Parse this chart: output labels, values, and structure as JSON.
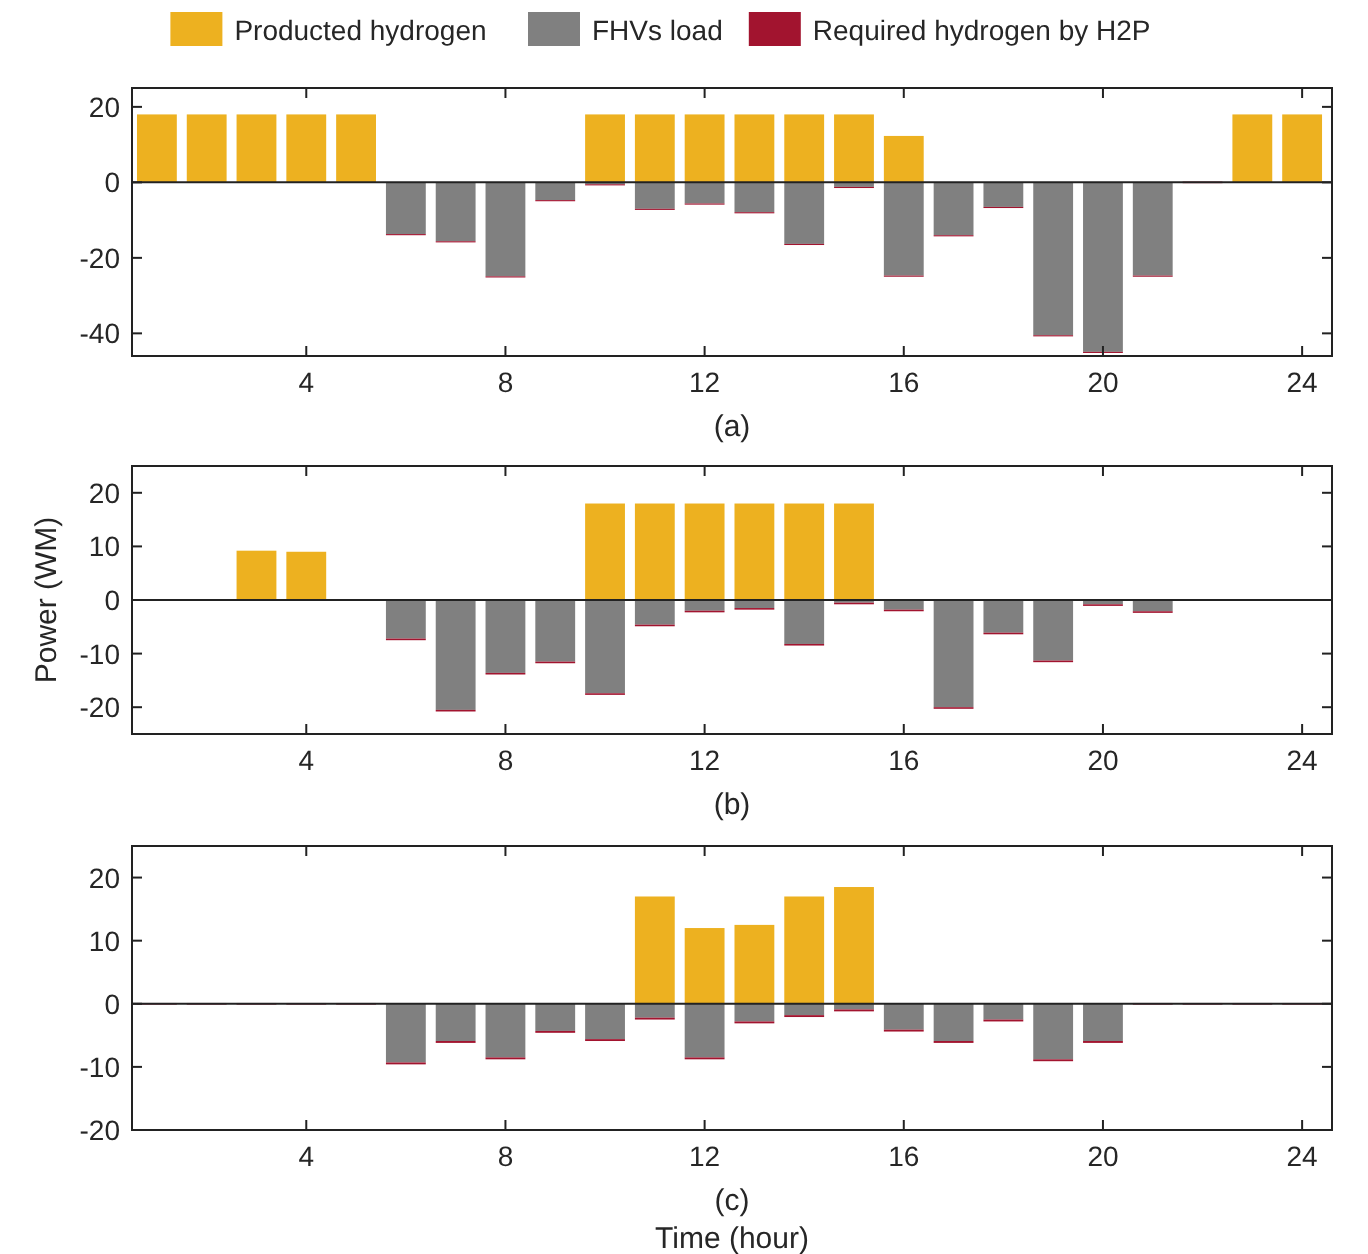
{
  "chart_data": [
    {
      "type": "bar",
      "title": "(a)",
      "stacked": true,
      "legend": "top",
      "x": [
        1,
        2,
        3,
        4,
        5,
        6,
        7,
        8,
        9,
        10,
        11,
        12,
        13,
        14,
        15,
        16,
        17,
        18,
        19,
        20,
        21,
        22,
        23,
        24
      ],
      "xlim": [
        0.5,
        24.6
      ],
      "xticks": [
        4,
        8,
        12,
        16,
        20,
        24
      ],
      "ylim": [
        -46,
        25
      ],
      "yticks": [
        -40,
        -20,
        0,
        20
      ],
      "series": [
        {
          "name": "Producted hydrogen",
          "color": "#edb120",
          "values": [
            18,
            18,
            18,
            18,
            18,
            null,
            null,
            null,
            null,
            18,
            18,
            18,
            18,
            18,
            18,
            12.3,
            null,
            null,
            null,
            null,
            null,
            null,
            18,
            18
          ]
        },
        {
          "name": "FHVs load",
          "color": "#808080",
          "values": [
            null,
            null,
            null,
            null,
            null,
            -13.7,
            -15.6,
            -24.9,
            -4.7,
            -0.5,
            -7,
            -5.6,
            -7.9,
            -16.3,
            -1.2,
            -24.7,
            -14,
            -6.5,
            -40.5,
            -44.9,
            -24.7,
            null,
            null,
            null
          ]
        },
        {
          "name": "Required hydrogen by H2P",
          "color": "#a2142f",
          "values": [
            null,
            null,
            null,
            null,
            null,
            -0.3,
            -0.3,
            -0.3,
            -0.3,
            -0.3,
            -0.3,
            -0.3,
            -0.3,
            -0.3,
            -0.3,
            -0.3,
            -0.3,
            -0.3,
            -0.3,
            -0.3,
            -0.3,
            0,
            null,
            null
          ]
        }
      ]
    },
    {
      "type": "bar",
      "title": "(b)",
      "ylabel": "Power (WM)",
      "stacked": true,
      "x": [
        1,
        2,
        3,
        4,
        5,
        6,
        7,
        8,
        9,
        10,
        11,
        12,
        13,
        14,
        15,
        16,
        17,
        18,
        19,
        20,
        21,
        22,
        23,
        24
      ],
      "xlim": [
        0.5,
        24.6
      ],
      "xticks": [
        4,
        8,
        12,
        16,
        20,
        24
      ],
      "ylim": [
        -25,
        25
      ],
      "yticks": [
        -20,
        -10,
        0,
        10,
        20
      ],
      "series": [
        {
          "color": "#edb120",
          "values": [
            null,
            null,
            9.2,
            9,
            null,
            null,
            null,
            null,
            null,
            18,
            18,
            18,
            18,
            18,
            18,
            null,
            null,
            null,
            null,
            null,
            null,
            null,
            null,
            null
          ]
        },
        {
          "color": "#808080",
          "values": [
            null,
            null,
            null,
            null,
            null,
            -7.2,
            -20.5,
            -13.6,
            -11.5,
            -17.4,
            -4.6,
            -2,
            -1.5,
            -8.2,
            -0.5,
            -1.8,
            -20,
            -6.1,
            -11.3,
            -0.8,
            -2.1,
            null,
            null,
            null
          ]
        },
        {
          "color": "#a2142f",
          "values": [
            0,
            0,
            null,
            null,
            0,
            -0.3,
            -0.3,
            -0.3,
            -0.3,
            -0.3,
            -0.3,
            -0.3,
            -0.3,
            -0.3,
            -0.3,
            -0.3,
            -0.3,
            -0.3,
            -0.3,
            -0.3,
            -0.3,
            0,
            0,
            0
          ]
        }
      ]
    },
    {
      "type": "bar",
      "title": "(c)",
      "xlabel": "Time (hour)",
      "stacked": true,
      "x": [
        1,
        2,
        3,
        4,
        5,
        6,
        7,
        8,
        9,
        10,
        11,
        12,
        13,
        14,
        15,
        16,
        17,
        18,
        19,
        20,
        21,
        22,
        23,
        24
      ],
      "xlim": [
        0.5,
        24.6
      ],
      "xticks": [
        4,
        8,
        12,
        16,
        20,
        24
      ],
      "ylim": [
        -20,
        25
      ],
      "yticks": [
        -20,
        -10,
        0,
        10,
        20
      ],
      "series": [
        {
          "color": "#edb120",
          "values": [
            null,
            null,
            null,
            null,
            null,
            null,
            null,
            null,
            null,
            null,
            17,
            12,
            12.5,
            17,
            18.5,
            null,
            null,
            null,
            null,
            null,
            null,
            null,
            null,
            null
          ]
        },
        {
          "color": "#808080",
          "values": [
            null,
            null,
            null,
            null,
            null,
            -9.3,
            -5.9,
            -8.5,
            -4.3,
            -5.6,
            -2.2,
            -8.5,
            -2.8,
            -1.8,
            -0.9,
            -4.1,
            -5.9,
            -2.5,
            -8.8,
            -5.9,
            null,
            null,
            null,
            null
          ]
        },
        {
          "color": "#a2142f",
          "values": [
            0,
            0,
            0,
            0,
            0,
            -0.3,
            -0.3,
            -0.3,
            -0.3,
            -0.3,
            -0.3,
            -0.3,
            -0.3,
            -0.3,
            -0.3,
            -0.3,
            -0.3,
            -0.3,
            -0.3,
            -0.3,
            0,
            0,
            0,
            0
          ]
        }
      ]
    }
  ]
}
